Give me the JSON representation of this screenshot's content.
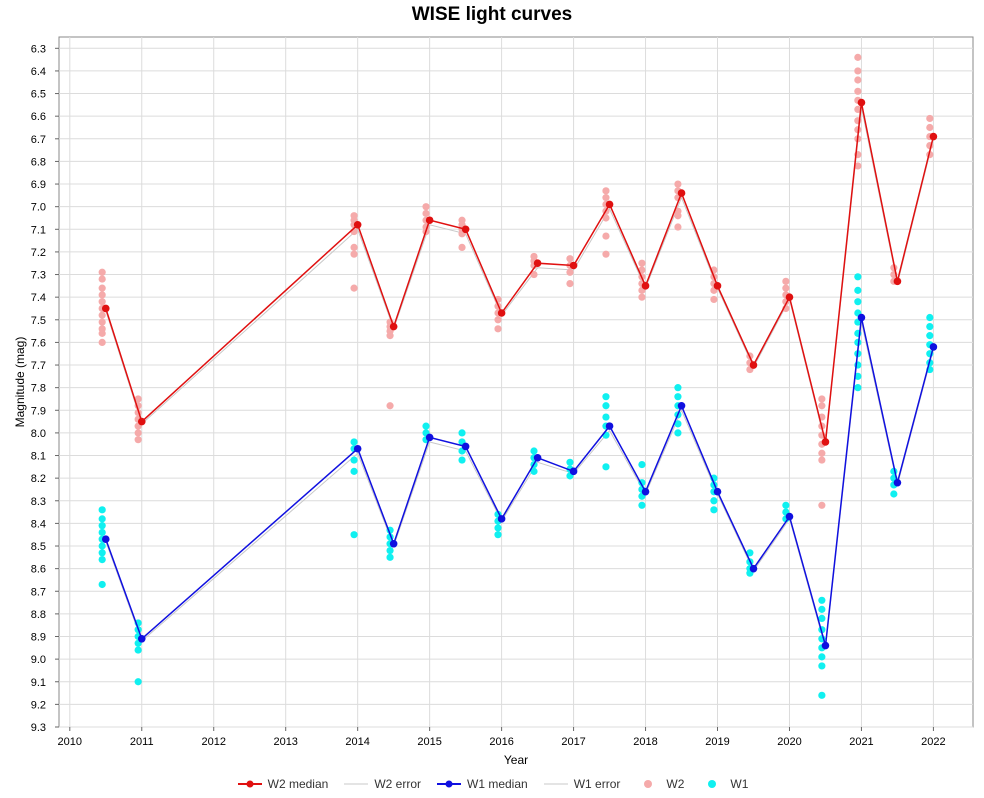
{
  "chart_data": {
    "type": "scatter",
    "title": "WISE light curves",
    "xlabel": "Year",
    "ylabel": "Magnitude (mag)",
    "xlim": [
      2009.85,
      2022.55
    ],
    "ylim": [
      9.3,
      6.25
    ],
    "y_inverted": true,
    "grid": true,
    "legend_position": "bottom",
    "x_ticks": [
      "2010",
      "2011",
      "2012",
      "2013",
      "2014",
      "2015",
      "2016",
      "2017",
      "2018",
      "2019",
      "2020",
      "2021",
      "2022"
    ],
    "y_ticks": [
      "6.3",
      "6.4",
      "6.5",
      "6.6",
      "6.7",
      "6.8",
      "6.9",
      "7.0",
      "7.1",
      "7.2",
      "7.3",
      "7.4",
      "7.5",
      "7.6",
      "7.7",
      "7.8",
      "7.9",
      "8.0",
      "8.1",
      "8.2",
      "8.3",
      "8.4",
      "8.5",
      "8.6",
      "8.7",
      "8.8",
      "8.9",
      "9.0",
      "9.1",
      "9.2",
      "9.3"
    ],
    "series": [
      {
        "name": "W2 median",
        "kind": "line",
        "color": "#e01010",
        "x": [
          2010.5,
          2011.0,
          2014.0,
          2014.5,
          2015.0,
          2015.5,
          2016.0,
          2016.5,
          2017.0,
          2017.5,
          2018.0,
          2018.5,
          2019.0,
          2019.5,
          2020.0,
          2020.5,
          2021.0,
          2021.5,
          2022.0
        ],
        "y": [
          7.45,
          7.95,
          7.08,
          7.53,
          7.06,
          7.1,
          7.47,
          7.25,
          7.26,
          6.99,
          7.35,
          6.94,
          7.35,
          7.7,
          7.4,
          8.04,
          6.54,
          7.33,
          6.69
        ]
      },
      {
        "name": "W2 error",
        "kind": "errorline",
        "color": "#c8c8c8",
        "x": [
          2010.5,
          2011.0,
          2014.0,
          2014.5,
          2015.0,
          2015.5,
          2016.0,
          2016.5,
          2017.0,
          2017.5,
          2018.0,
          2018.5,
          2019.0,
          2019.5,
          2020.0,
          2020.5,
          2021.0,
          2021.5,
          2022.0
        ],
        "y": [
          7.46,
          7.96,
          7.1,
          7.54,
          7.08,
          7.12,
          7.48,
          7.27,
          7.28,
          7.01,
          7.36,
          6.96,
          7.36,
          7.71,
          7.41,
          8.05,
          6.56,
          7.34,
          6.7
        ]
      },
      {
        "name": "W1 median",
        "kind": "line",
        "color": "#1010e0",
        "x": [
          2010.5,
          2011.0,
          2014.0,
          2014.5,
          2015.0,
          2015.5,
          2016.0,
          2016.5,
          2017.0,
          2017.5,
          2018.0,
          2018.5,
          2019.0,
          2019.5,
          2020.0,
          2020.5,
          2021.0,
          2021.5,
          2022.0
        ],
        "y": [
          8.47,
          8.91,
          8.07,
          8.49,
          8.02,
          8.06,
          8.38,
          8.11,
          8.17,
          7.97,
          8.26,
          7.88,
          8.26,
          8.6,
          8.37,
          8.94,
          7.49,
          8.22,
          7.62
        ]
      },
      {
        "name": "W1 error",
        "kind": "errorline",
        "color": "#c8c8c8",
        "x": [
          2010.5,
          2011.0,
          2014.0,
          2014.5,
          2015.0,
          2015.5,
          2016.0,
          2016.5,
          2017.0,
          2017.5,
          2018.0,
          2018.5,
          2019.0,
          2019.5,
          2020.0,
          2020.5,
          2021.0,
          2021.5,
          2022.0
        ],
        "y": [
          8.48,
          8.92,
          8.09,
          8.5,
          8.04,
          8.08,
          8.39,
          8.13,
          8.18,
          7.99,
          8.27,
          7.9,
          8.27,
          8.61,
          8.38,
          8.95,
          7.51,
          8.23,
          7.63
        ]
      },
      {
        "name": "W2",
        "kind": "points",
        "color": "#f5aaaa",
        "points": [
          [
            2010.45,
            7.29
          ],
          [
            2010.45,
            7.32
          ],
          [
            2010.45,
            7.36
          ],
          [
            2010.45,
            7.39
          ],
          [
            2010.45,
            7.42
          ],
          [
            2010.45,
            7.45
          ],
          [
            2010.45,
            7.48
          ],
          [
            2010.45,
            7.51
          ],
          [
            2010.45,
            7.54
          ],
          [
            2010.45,
            7.56
          ],
          [
            2010.45,
            7.6
          ],
          [
            2010.95,
            7.85
          ],
          [
            2010.95,
            7.88
          ],
          [
            2010.95,
            7.91
          ],
          [
            2010.95,
            7.94
          ],
          [
            2010.95,
            7.97
          ],
          [
            2010.95,
            8.0
          ],
          [
            2010.95,
            8.03
          ],
          [
            2013.95,
            7.04
          ],
          [
            2013.95,
            7.06
          ],
          [
            2013.95,
            7.08
          ],
          [
            2013.95,
            7.11
          ],
          [
            2013.95,
            7.18
          ],
          [
            2013.95,
            7.21
          ],
          [
            2013.95,
            7.36
          ],
          [
            2014.45,
            7.51
          ],
          [
            2014.45,
            7.53
          ],
          [
            2014.45,
            7.55
          ],
          [
            2014.45,
            7.57
          ],
          [
            2014.45,
            7.88
          ],
          [
            2014.95,
            7.0
          ],
          [
            2014.95,
            7.03
          ],
          [
            2014.95,
            7.06
          ],
          [
            2014.95,
            7.09
          ],
          [
            2014.95,
            7.11
          ],
          [
            2015.45,
            7.06
          ],
          [
            2015.45,
            7.08
          ],
          [
            2015.45,
            7.1
          ],
          [
            2015.45,
            7.12
          ],
          [
            2015.45,
            7.18
          ],
          [
            2015.95,
            7.41
          ],
          [
            2015.95,
            7.44
          ],
          [
            2015.95,
            7.47
          ],
          [
            2015.95,
            7.5
          ],
          [
            2015.95,
            7.54
          ],
          [
            2016.45,
            7.22
          ],
          [
            2016.45,
            7.24
          ],
          [
            2016.45,
            7.26
          ],
          [
            2016.45,
            7.3
          ],
          [
            2016.95,
            7.23
          ],
          [
            2016.95,
            7.26
          ],
          [
            2016.95,
            7.29
          ],
          [
            2016.95,
            7.34
          ],
          [
            2017.45,
            6.93
          ],
          [
            2017.45,
            6.96
          ],
          [
            2017.45,
            6.99
          ],
          [
            2017.45,
            7.02
          ],
          [
            2017.45,
            7.05
          ],
          [
            2017.45,
            7.13
          ],
          [
            2017.45,
            7.21
          ],
          [
            2017.95,
            7.25
          ],
          [
            2017.95,
            7.28
          ],
          [
            2017.95,
            7.31
          ],
          [
            2017.95,
            7.34
          ],
          [
            2017.95,
            7.37
          ],
          [
            2017.95,
            7.4
          ],
          [
            2018.45,
            6.9
          ],
          [
            2018.45,
            6.93
          ],
          [
            2018.45,
            6.96
          ],
          [
            2018.45,
            7.02
          ],
          [
            2018.45,
            7.04
          ],
          [
            2018.45,
            7.09
          ],
          [
            2018.95,
            7.28
          ],
          [
            2018.95,
            7.31
          ],
          [
            2018.95,
            7.34
          ],
          [
            2018.95,
            7.37
          ],
          [
            2018.95,
            7.41
          ],
          [
            2019.45,
            7.66
          ],
          [
            2019.45,
            7.69
          ],
          [
            2019.45,
            7.72
          ],
          [
            2019.95,
            7.33
          ],
          [
            2019.95,
            7.36
          ],
          [
            2019.95,
            7.39
          ],
          [
            2019.95,
            7.42
          ],
          [
            2019.95,
            7.45
          ],
          [
            2020.45,
            7.85
          ],
          [
            2020.45,
            7.88
          ],
          [
            2020.45,
            7.93
          ],
          [
            2020.45,
            7.97
          ],
          [
            2020.45,
            8.01
          ],
          [
            2020.45,
            8.05
          ],
          [
            2020.45,
            8.09
          ],
          [
            2020.45,
            8.12
          ],
          [
            2020.45,
            8.32
          ],
          [
            2020.95,
            6.34
          ],
          [
            2020.95,
            6.4
          ],
          [
            2020.95,
            6.44
          ],
          [
            2020.95,
            6.49
          ],
          [
            2020.95,
            6.53
          ],
          [
            2020.95,
            6.57
          ],
          [
            2020.95,
            6.62
          ],
          [
            2020.95,
            6.66
          ],
          [
            2020.95,
            6.7
          ],
          [
            2020.95,
            6.77
          ],
          [
            2020.95,
            6.82
          ],
          [
            2021.45,
            7.27
          ],
          [
            2021.45,
            7.3
          ],
          [
            2021.45,
            7.33
          ],
          [
            2021.95,
            6.61
          ],
          [
            2021.95,
            6.65
          ],
          [
            2021.95,
            6.69
          ],
          [
            2021.95,
            6.73
          ],
          [
            2021.95,
            6.77
          ]
        ]
      },
      {
        "name": "W1",
        "kind": "points",
        "color": "#10f0f0",
        "points": [
          [
            2010.45,
            8.34
          ],
          [
            2010.45,
            8.38
          ],
          [
            2010.45,
            8.41
          ],
          [
            2010.45,
            8.44
          ],
          [
            2010.45,
            8.47
          ],
          [
            2010.45,
            8.5
          ],
          [
            2010.45,
            8.53
          ],
          [
            2010.45,
            8.56
          ],
          [
            2010.45,
            8.67
          ],
          [
            2010.95,
            8.84
          ],
          [
            2010.95,
            8.87
          ],
          [
            2010.95,
            8.9
          ],
          [
            2010.95,
            8.93
          ],
          [
            2010.95,
            8.96
          ],
          [
            2010.95,
            9.1
          ],
          [
            2013.95,
            8.04
          ],
          [
            2013.95,
            8.07
          ],
          [
            2013.95,
            8.12
          ],
          [
            2013.95,
            8.17
          ],
          [
            2013.95,
            8.45
          ],
          [
            2014.45,
            8.43
          ],
          [
            2014.45,
            8.46
          ],
          [
            2014.45,
            8.49
          ],
          [
            2014.45,
            8.52
          ],
          [
            2014.45,
            8.55
          ],
          [
            2014.95,
            7.97
          ],
          [
            2014.95,
            8.0
          ],
          [
            2014.95,
            8.03
          ],
          [
            2015.45,
            8.0
          ],
          [
            2015.45,
            8.04
          ],
          [
            2015.45,
            8.08
          ],
          [
            2015.45,
            8.12
          ],
          [
            2015.95,
            8.36
          ],
          [
            2015.95,
            8.39
          ],
          [
            2015.95,
            8.42
          ],
          [
            2015.95,
            8.45
          ],
          [
            2016.45,
            8.08
          ],
          [
            2016.45,
            8.11
          ],
          [
            2016.45,
            8.14
          ],
          [
            2016.45,
            8.17
          ],
          [
            2016.95,
            8.13
          ],
          [
            2016.95,
            8.16
          ],
          [
            2016.95,
            8.19
          ],
          [
            2017.45,
            7.84
          ],
          [
            2017.45,
            7.88
          ],
          [
            2017.45,
            7.93
          ],
          [
            2017.45,
            7.97
          ],
          [
            2017.45,
            8.01
          ],
          [
            2017.45,
            8.15
          ],
          [
            2017.95,
            8.14
          ],
          [
            2017.95,
            8.22
          ],
          [
            2017.95,
            8.25
          ],
          [
            2017.95,
            8.28
          ],
          [
            2017.95,
            8.32
          ],
          [
            2018.45,
            7.8
          ],
          [
            2018.45,
            7.84
          ],
          [
            2018.45,
            7.88
          ],
          [
            2018.45,
            7.92
          ],
          [
            2018.45,
            7.96
          ],
          [
            2018.45,
            8.0
          ],
          [
            2018.95,
            8.2
          ],
          [
            2018.95,
            8.23
          ],
          [
            2018.95,
            8.26
          ],
          [
            2018.95,
            8.3
          ],
          [
            2018.95,
            8.34
          ],
          [
            2019.45,
            8.53
          ],
          [
            2019.45,
            8.57
          ],
          [
            2019.45,
            8.6
          ],
          [
            2019.45,
            8.62
          ],
          [
            2019.95,
            8.32
          ],
          [
            2019.95,
            8.35
          ],
          [
            2019.95,
            8.38
          ],
          [
            2020.45,
            8.74
          ],
          [
            2020.45,
            8.78
          ],
          [
            2020.45,
            8.82
          ],
          [
            2020.45,
            8.87
          ],
          [
            2020.45,
            8.91
          ],
          [
            2020.45,
            8.95
          ],
          [
            2020.45,
            8.99
          ],
          [
            2020.45,
            9.03
          ],
          [
            2020.45,
            9.16
          ],
          [
            2020.95,
            7.31
          ],
          [
            2020.95,
            7.37
          ],
          [
            2020.95,
            7.42
          ],
          [
            2020.95,
            7.47
          ],
          [
            2020.95,
            7.51
          ],
          [
            2020.95,
            7.56
          ],
          [
            2020.95,
            7.6
          ],
          [
            2020.95,
            7.65
          ],
          [
            2020.95,
            7.7
          ],
          [
            2020.95,
            7.75
          ],
          [
            2020.95,
            7.8
          ],
          [
            2021.45,
            8.17
          ],
          [
            2021.45,
            8.2
          ],
          [
            2021.45,
            8.23
          ],
          [
            2021.45,
            8.27
          ],
          [
            2021.95,
            7.49
          ],
          [
            2021.95,
            7.53
          ],
          [
            2021.95,
            7.57
          ],
          [
            2021.95,
            7.61
          ],
          [
            2021.95,
            7.65
          ],
          [
            2021.95,
            7.69
          ],
          [
            2021.95,
            7.72
          ]
        ]
      }
    ]
  },
  "legend": {
    "items": [
      {
        "label": "W2 median",
        "kind": "line",
        "color": "#e01010"
      },
      {
        "label": "W2 error",
        "kind": "errorline",
        "color": "#c8c8c8"
      },
      {
        "label": "W1 median",
        "kind": "line",
        "color": "#1010e0"
      },
      {
        "label": "W1 error",
        "kind": "errorline",
        "color": "#c8c8c8"
      },
      {
        "label": "W2",
        "kind": "points",
        "color": "#f5aaaa"
      },
      {
        "label": "W1",
        "kind": "points",
        "color": "#10f0f0"
      }
    ]
  }
}
